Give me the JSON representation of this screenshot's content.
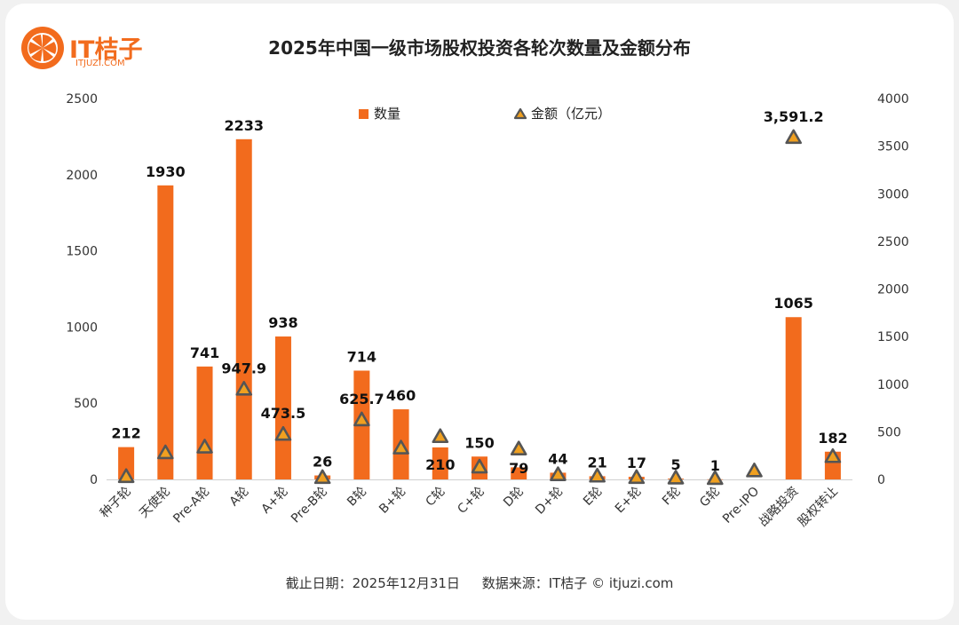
{
  "brand": {
    "name": "IT桔子",
    "site": "ITJUZI.COM"
  },
  "title": "2025年中国一级市场股权投资各轮次数量及金额分布",
  "footer": {
    "date": "截止日期：2025年12月31日",
    "source": "数据来源：IT桔子 © itjuzi.com"
  },
  "colors": {
    "bar": "#f26b1d",
    "marker_fill": "#f0a020",
    "marker_stroke": "#555555"
  },
  "chart_data": {
    "type": "bar",
    "title": "2025年中国一级市场股权投资各轮次数量及金额分布",
    "categories": [
      "种子轮",
      "天使轮",
      "Pre-A轮",
      "A轮",
      "A+轮",
      "Pre-B轮",
      "B轮",
      "B+轮",
      "C轮",
      "C+轮",
      "D轮",
      "D+轮",
      "E轮",
      "E+轮",
      "F轮",
      "G轮",
      "Pre-IPO",
      "战略投资",
      "股权转让"
    ],
    "series": [
      {
        "name": "数量",
        "type": "bar",
        "axis": "left",
        "values": [
          212,
          1930,
          741,
          2233,
          938,
          26,
          714,
          460,
          210,
          150,
          79,
          44,
          21,
          17,
          5,
          1,
          null,
          1065,
          182
        ],
        "labels": [
          "212",
          "1930",
          "741",
          "2233",
          "938",
          "26",
          "714",
          "460",
          "210",
          "150",
          "79",
          "44",
          "21",
          "17",
          "5",
          "1",
          "",
          "1065",
          "182"
        ]
      },
      {
        "name": "金额（亿元）",
        "type": "scatter",
        "axis": "right",
        "values": [
          30,
          280,
          340,
          947.9,
          473.5,
          20,
          625.7,
          330,
          450,
          130,
          320,
          50,
          35,
          20,
          15,
          10,
          90,
          3591.2,
          240
        ],
        "labels": [
          "",
          "",
          "",
          "947.9",
          "473.5",
          "",
          "625.7",
          "",
          "",
          "",
          "",
          "",
          "",
          "",
          "",
          "",
          "",
          "3,591.2",
          ""
        ]
      }
    ],
    "yleft": {
      "lim": [
        0,
        2500
      ],
      "ticks": [
        0,
        500,
        1000,
        1500,
        2000,
        2500
      ]
    },
    "yright": {
      "lim": [
        0,
        4000
      ],
      "ticks": [
        0,
        500,
        1000,
        1500,
        2000,
        2500,
        3000,
        3500,
        4000
      ]
    },
    "legend_position": "top-center",
    "grid": false
  }
}
